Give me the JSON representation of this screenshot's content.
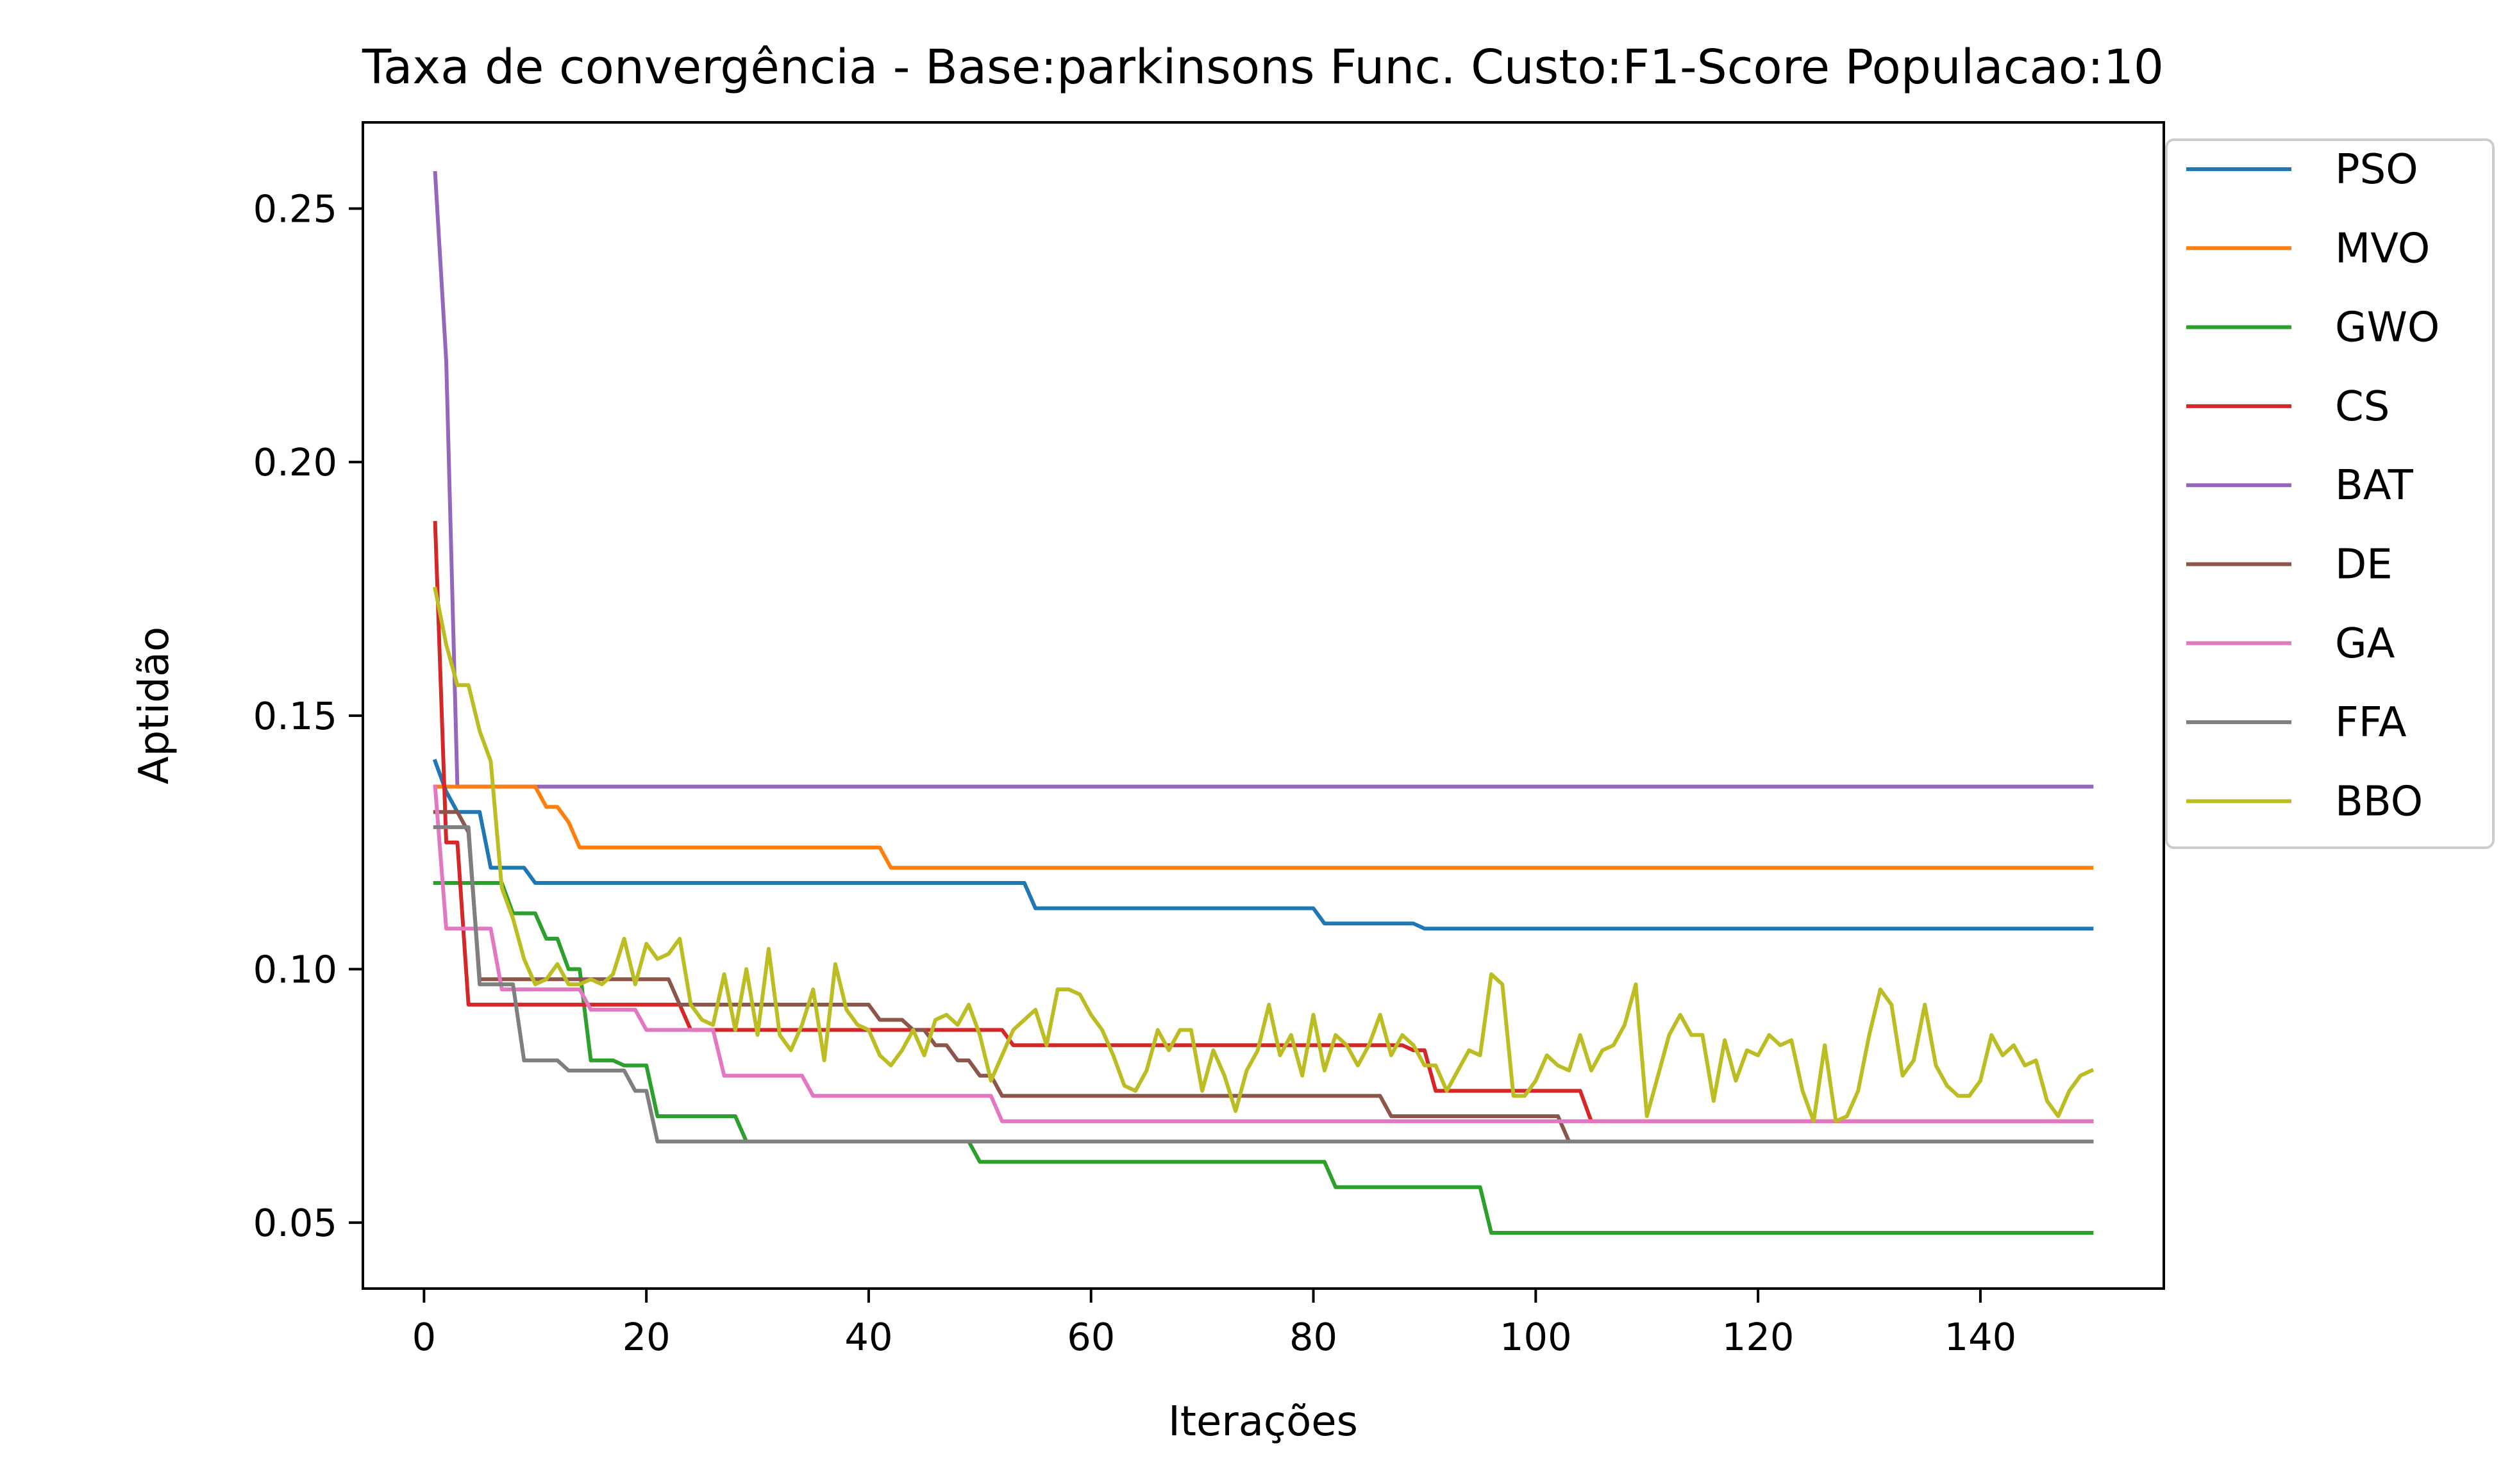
{
  "chart_data": {
    "type": "line",
    "title": "Taxa de convergência - Base:parkinsons Func. Custo:F1-Score Populacao:10",
    "xlabel": "Iterações",
    "ylabel": "Aptidão",
    "xlim": [
      -5.5,
      156.5
    ],
    "ylim": [
      0.037,
      0.267
    ],
    "xticks": [
      0,
      20,
      40,
      60,
      80,
      100,
      120,
      140
    ],
    "yticks": [
      0.05,
      0.1,
      0.15,
      0.2,
      0.25
    ],
    "ytick_labels": [
      "0.05",
      "0.10",
      "0.15",
      "0.20",
      "0.25"
    ],
    "legend_position": "outside-top-right",
    "x_start": 1,
    "x_end": 150,
    "series": [
      {
        "name": "PSO",
        "color": "#1f77b4",
        "steps": [
          [
            1,
            0.141
          ],
          [
            2,
            0.135
          ],
          [
            3,
            0.131
          ],
          [
            6,
            0.12
          ],
          [
            10,
            0.117
          ],
          [
            52,
            0.117
          ],
          [
            55,
            0.112
          ],
          [
            80,
            0.112
          ],
          [
            81,
            0.109
          ],
          [
            89,
            0.109
          ],
          [
            90,
            0.108
          ],
          [
            150,
            0.108
          ]
        ]
      },
      {
        "name": "MVO",
        "color": "#ff7f0e",
        "steps": [
          [
            1,
            0.136
          ],
          [
            10,
            0.136
          ],
          [
            11,
            0.132
          ],
          [
            13,
            0.129
          ],
          [
            14,
            0.124
          ],
          [
            41,
            0.124
          ],
          [
            42,
            0.12
          ],
          [
            150,
            0.12
          ]
        ]
      },
      {
        "name": "GWO",
        "color": "#2ca02c",
        "steps": [
          [
            1,
            0.117
          ],
          [
            6,
            0.117
          ],
          [
            8,
            0.111
          ],
          [
            11,
            0.106
          ],
          [
            13,
            0.1
          ],
          [
            15,
            0.082
          ],
          [
            18,
            0.081
          ],
          [
            20,
            0.081
          ],
          [
            21,
            0.071
          ],
          [
            28,
            0.071
          ],
          [
            29,
            0.066
          ],
          [
            49,
            0.066
          ],
          [
            50,
            0.062
          ],
          [
            81,
            0.062
          ],
          [
            82,
            0.057
          ],
          [
            95,
            0.057
          ],
          [
            96,
            0.048
          ],
          [
            150,
            0.048
          ]
        ]
      },
      {
        "name": "CS",
        "color": "#d62728",
        "steps": [
          [
            1,
            0.188
          ],
          [
            2,
            0.125
          ],
          [
            4,
            0.093
          ],
          [
            23,
            0.093
          ],
          [
            24,
            0.088
          ],
          [
            52,
            0.088
          ],
          [
            53,
            0.085
          ],
          [
            88,
            0.085
          ],
          [
            89,
            0.084
          ],
          [
            90,
            0.084
          ],
          [
            91,
            0.076
          ],
          [
            104,
            0.076
          ],
          [
            105,
            0.07
          ],
          [
            150,
            0.07
          ]
        ]
      },
      {
        "name": "BAT",
        "color": "#9467bd",
        "steps": [
          [
            1,
            0.257
          ],
          [
            2,
            0.22
          ],
          [
            3,
            0.136
          ],
          [
            150,
            0.136
          ]
        ]
      },
      {
        "name": "DE",
        "color": "#8c564b",
        "steps": [
          [
            1,
            0.131
          ],
          [
            3,
            0.131
          ],
          [
            4,
            0.127
          ],
          [
            5,
            0.098
          ],
          [
            22,
            0.098
          ],
          [
            23,
            0.093
          ],
          [
            40,
            0.093
          ],
          [
            41,
            0.09
          ],
          [
            44,
            0.088
          ],
          [
            46,
            0.085
          ],
          [
            48,
            0.082
          ],
          [
            50,
            0.079
          ],
          [
            52,
            0.075
          ],
          [
            86,
            0.075
          ],
          [
            87,
            0.071
          ],
          [
            102,
            0.071
          ],
          [
            103,
            0.066
          ],
          [
            150,
            0.066
          ]
        ]
      },
      {
        "name": "GA",
        "color": "#e377c2",
        "steps": [
          [
            1,
            0.136
          ],
          [
            2,
            0.108
          ],
          [
            7,
            0.096
          ],
          [
            14,
            0.096
          ],
          [
            15,
            0.092
          ],
          [
            19,
            0.092
          ],
          [
            20,
            0.088
          ],
          [
            26,
            0.088
          ],
          [
            27,
            0.079
          ],
          [
            34,
            0.079
          ],
          [
            35,
            0.075
          ],
          [
            51,
            0.075
          ],
          [
            52,
            0.07
          ],
          [
            150,
            0.07
          ]
        ]
      },
      {
        "name": "FFA",
        "color": "#7f7f7f",
        "steps": [
          [
            1,
            0.128
          ],
          [
            3,
            0.128
          ],
          [
            5,
            0.097
          ],
          [
            8,
            0.097
          ],
          [
            9,
            0.082
          ],
          [
            12,
            0.082
          ],
          [
            13,
            0.08
          ],
          [
            18,
            0.08
          ],
          [
            19,
            0.076
          ],
          [
            20,
            0.076
          ],
          [
            21,
            0.066
          ],
          [
            150,
            0.066
          ]
        ]
      },
      {
        "name": "BBO",
        "color": "#bcbd22",
        "points": [
          [
            1,
            0.175
          ],
          [
            2,
            0.164
          ],
          [
            3,
            0.156
          ],
          [
            4,
            0.156
          ],
          [
            5,
            0.147
          ],
          [
            6,
            0.141
          ],
          [
            7,
            0.116
          ],
          [
            8,
            0.11
          ],
          [
            9,
            0.102
          ],
          [
            10,
            0.097
          ],
          [
            11,
            0.098
          ],
          [
            12,
            0.101
          ],
          [
            13,
            0.097
          ],
          [
            14,
            0.097
          ],
          [
            15,
            0.098
          ],
          [
            16,
            0.097
          ],
          [
            17,
            0.099
          ],
          [
            18,
            0.106
          ],
          [
            19,
            0.097
          ],
          [
            20,
            0.105
          ],
          [
            21,
            0.102
          ],
          [
            22,
            0.103
          ],
          [
            23,
            0.106
          ],
          [
            24,
            0.093
          ],
          [
            25,
            0.09
          ],
          [
            26,
            0.089
          ],
          [
            27,
            0.099
          ],
          [
            28,
            0.088
          ],
          [
            29,
            0.1
          ],
          [
            30,
            0.087
          ],
          [
            31,
            0.104
          ],
          [
            32,
            0.087
          ],
          [
            33,
            0.084
          ],
          [
            34,
            0.089
          ],
          [
            35,
            0.096
          ],
          [
            36,
            0.082
          ],
          [
            37,
            0.101
          ],
          [
            38,
            0.092
          ],
          [
            39,
            0.089
          ],
          [
            40,
            0.088
          ],
          [
            41,
            0.083
          ],
          [
            42,
            0.081
          ],
          [
            43,
            0.084
          ],
          [
            44,
            0.088
          ],
          [
            45,
            0.083
          ],
          [
            46,
            0.09
          ],
          [
            47,
            0.091
          ],
          [
            48,
            0.089
          ],
          [
            49,
            0.093
          ],
          [
            50,
            0.087
          ],
          [
            51,
            0.078
          ],
          [
            52,
            0.083
          ],
          [
            53,
            0.088
          ],
          [
            54,
            0.09
          ],
          [
            55,
            0.092
          ],
          [
            56,
            0.085
          ],
          [
            57,
            0.096
          ],
          [
            58,
            0.096
          ],
          [
            59,
            0.095
          ],
          [
            60,
            0.091
          ],
          [
            61,
            0.088
          ],
          [
            62,
            0.083
          ],
          [
            63,
            0.077
          ],
          [
            64,
            0.076
          ],
          [
            65,
            0.08
          ],
          [
            66,
            0.088
          ],
          [
            67,
            0.084
          ],
          [
            68,
            0.088
          ],
          [
            69,
            0.088
          ],
          [
            70,
            0.076
          ],
          [
            71,
            0.084
          ],
          [
            72,
            0.079
          ],
          [
            73,
            0.072
          ],
          [
            74,
            0.08
          ],
          [
            75,
            0.084
          ],
          [
            76,
            0.093
          ],
          [
            77,
            0.083
          ],
          [
            78,
            0.087
          ],
          [
            79,
            0.079
          ],
          [
            80,
            0.091
          ],
          [
            81,
            0.08
          ],
          [
            82,
            0.087
          ],
          [
            83,
            0.085
          ],
          [
            84,
            0.081
          ],
          [
            85,
            0.085
          ],
          [
            86,
            0.091
          ],
          [
            87,
            0.083
          ],
          [
            88,
            0.087
          ],
          [
            89,
            0.085
          ],
          [
            90,
            0.081
          ],
          [
            91,
            0.081
          ],
          [
            92,
            0.076
          ],
          [
            93,
            0.08
          ],
          [
            94,
            0.084
          ],
          [
            95,
            0.083
          ],
          [
            96,
            0.099
          ],
          [
            97,
            0.097
          ],
          [
            98,
            0.075
          ],
          [
            99,
            0.075
          ],
          [
            100,
            0.078
          ],
          [
            101,
            0.083
          ],
          [
            102,
            0.081
          ],
          [
            103,
            0.08
          ],
          [
            104,
            0.087
          ],
          [
            105,
            0.08
          ],
          [
            106,
            0.084
          ],
          [
            107,
            0.085
          ],
          [
            108,
            0.089
          ],
          [
            109,
            0.097
          ],
          [
            110,
            0.071
          ],
          [
            111,
            0.079
          ],
          [
            112,
            0.087
          ],
          [
            113,
            0.091
          ],
          [
            114,
            0.087
          ],
          [
            115,
            0.087
          ],
          [
            116,
            0.074
          ],
          [
            117,
            0.086
          ],
          [
            118,
            0.078
          ],
          [
            119,
            0.084
          ],
          [
            120,
            0.083
          ],
          [
            121,
            0.087
          ],
          [
            122,
            0.085
          ],
          [
            123,
            0.086
          ],
          [
            124,
            0.076
          ],
          [
            125,
            0.07
          ],
          [
            126,
            0.085
          ],
          [
            127,
            0.07
          ],
          [
            128,
            0.071
          ],
          [
            129,
            0.076
          ],
          [
            130,
            0.087
          ],
          [
            131,
            0.096
          ],
          [
            132,
            0.093
          ],
          [
            133,
            0.079
          ],
          [
            134,
            0.082
          ],
          [
            135,
            0.093
          ],
          [
            136,
            0.081
          ],
          [
            137,
            0.077
          ],
          [
            138,
            0.075
          ],
          [
            139,
            0.075
          ],
          [
            140,
            0.078
          ],
          [
            141,
            0.087
          ],
          [
            142,
            0.083
          ],
          [
            143,
            0.085
          ],
          [
            144,
            0.081
          ],
          [
            145,
            0.082
          ],
          [
            146,
            0.074
          ],
          [
            147,
            0.071
          ],
          [
            148,
            0.076
          ],
          [
            149,
            0.079
          ],
          [
            150,
            0.08
          ]
        ]
      }
    ]
  }
}
